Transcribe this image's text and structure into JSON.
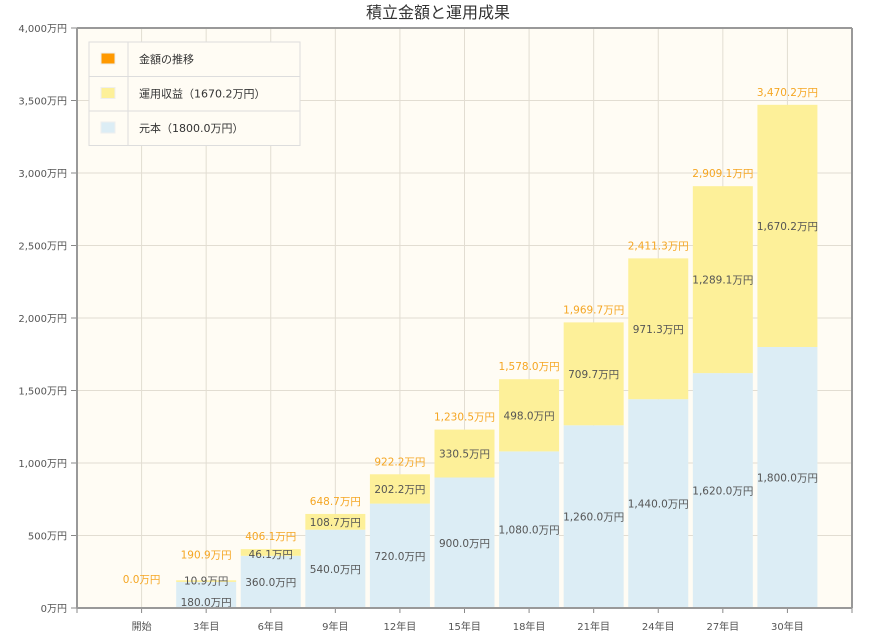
{
  "chart_data": {
    "type": "bar",
    "stacked": true,
    "title": "積立金額と運用成果",
    "categories": [
      "開始",
      "3年目",
      "6年目",
      "9年目",
      "12年目",
      "15年目",
      "18年目",
      "21年目",
      "24年目",
      "27年目",
      "30年目"
    ],
    "series": [
      {
        "name": "元本（1800.0万円）",
        "color": "#dcedf5",
        "values": [
          0,
          180,
          360,
          540,
          720,
          900,
          1080,
          1260,
          1440,
          1620,
          1800
        ]
      },
      {
        "name": "運用収益（1670.2万円）",
        "color": "#fdf099",
        "values": [
          0,
          10.9,
          46.1,
          108.7,
          202.2,
          330.5,
          498.0,
          709.7,
          971.3,
          1289.1,
          1670.2
        ]
      }
    ],
    "totals": {
      "name": "金額の推移",
      "color": "#ff9900",
      "values": [
        0.0,
        190.9,
        406.1,
        648.7,
        922.2,
        1230.5,
        1578.0,
        1969.7,
        2411.3,
        2909.1,
        3470.2
      ]
    },
    "value_suffix": "万円",
    "ylim": [
      0,
      4000
    ],
    "yticks": [
      0,
      500,
      1000,
      1500,
      2000,
      2500,
      3000,
      3500,
      4000
    ],
    "ytick_labels": [
      "0万円",
      "500万円",
      "1,000万円",
      "1,500万円",
      "2,000万円",
      "2,500万円",
      "3,000万円",
      "3,500万円",
      "4,000万円"
    ],
    "grid": true,
    "legend_position": "top-left",
    "plot_background": "#fffcf4"
  }
}
